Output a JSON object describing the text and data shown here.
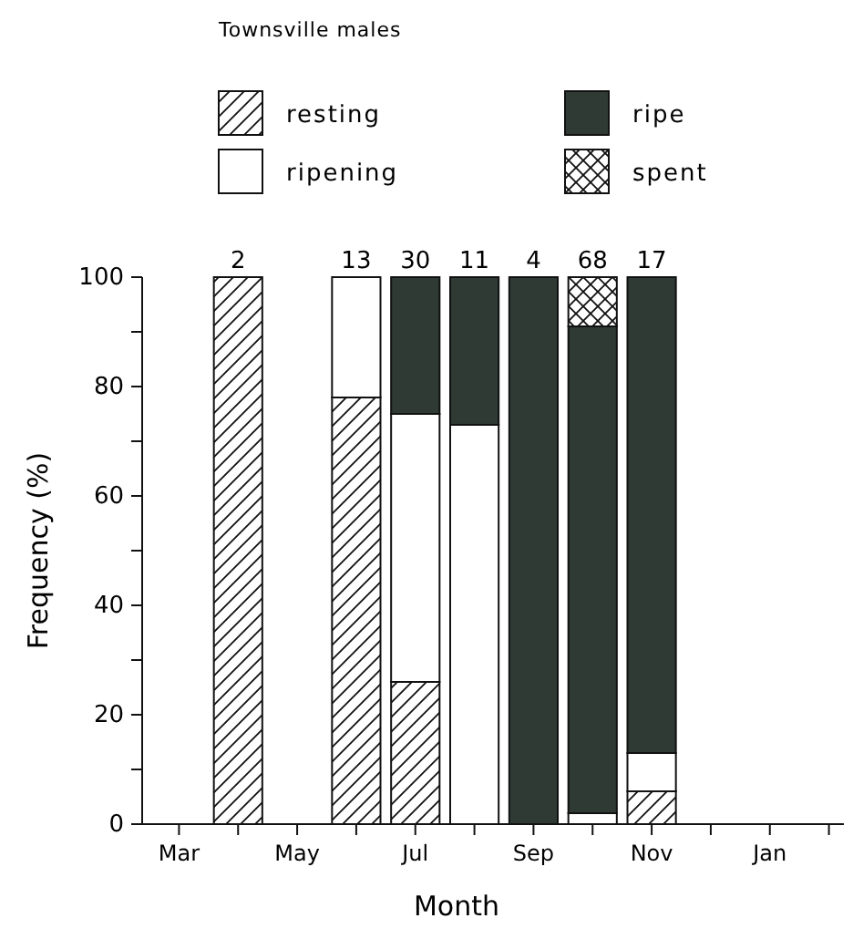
{
  "chart_data": {
    "type": "bar",
    "title": "Townsville males",
    "xlabel": "Month",
    "ylabel": "Frequency (%)",
    "stacked": true,
    "legend": "top",
    "categories": [
      "Mar",
      null,
      "May",
      null,
      "Jul",
      null,
      "Sep",
      null,
      "Nov",
      null,
      "Jan",
      null
    ],
    "series": [
      {
        "name": "resting",
        "color": "#111111",
        "values": [
          null,
          100,
          null,
          78,
          26,
          0,
          0,
          0,
          6,
          null,
          null,
          null
        ]
      },
      {
        "name": "ripening",
        "color": "#ffffff",
        "values": [
          null,
          0,
          null,
          22,
          49,
          73,
          0,
          2,
          7,
          null,
          null,
          null
        ]
      },
      {
        "name": "ripe",
        "color": "#2f3a35",
        "values": [
          null,
          0,
          null,
          0,
          25,
          27,
          100,
          89,
          87,
          null,
          null,
          null
        ]
      },
      {
        "name": "spent",
        "color": "#111111",
        "values": [
          null,
          0,
          null,
          0,
          0,
          0,
          0,
          9,
          0,
          null,
          null,
          null
        ]
      }
    ],
    "annotations": [
      "2",
      "13",
      "30",
      "11",
      "4",
      "68",
      "17"
    ],
    "ylim": [
      0,
      100
    ],
    "yticks": [
      0,
      {
        "value": 10,
        "label": null
      },
      20,
      {
        "value": 30,
        "label": null
      },
      40,
      {
        "value": 50,
        "label": null
      },
      60,
      {
        "value": 70,
        "label": null
      },
      80,
      {
        "value": 90,
        "label": null
      },
      100
    ]
  }
}
